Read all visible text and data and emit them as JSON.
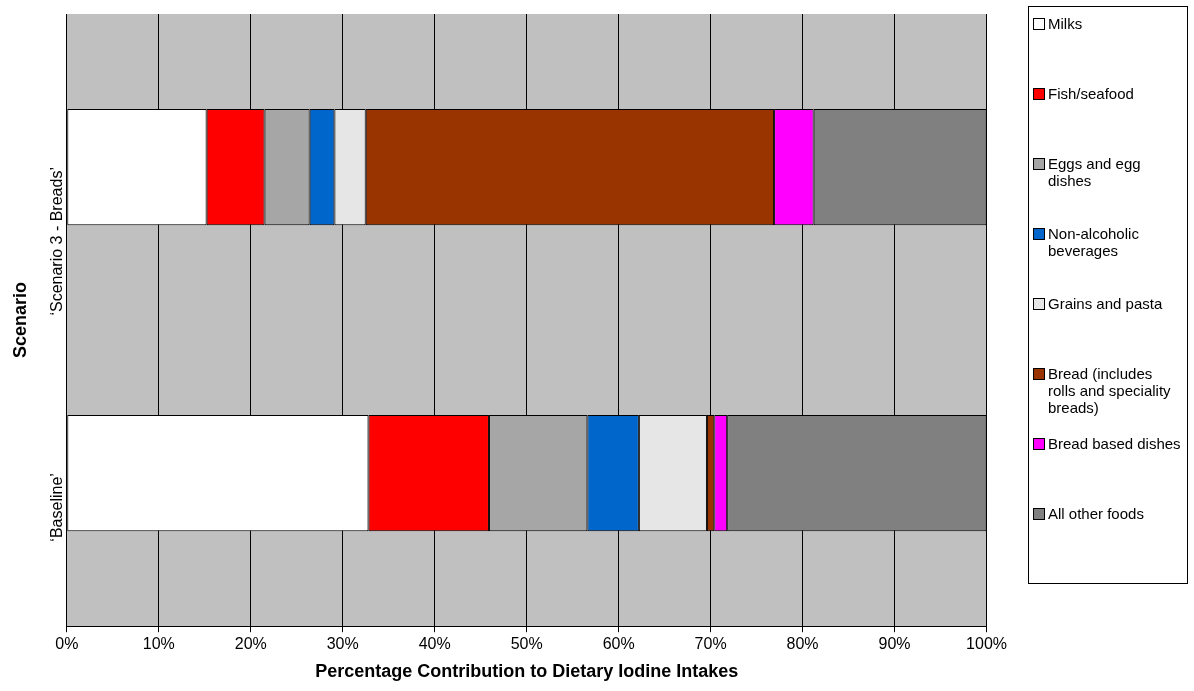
{
  "chart_data": {
    "type": "bar",
    "orientation": "horizontal",
    "stacked": true,
    "xlabel": "Percentage Contribution to Dietary Iodine Intakes",
    "ylabel": "Scenario",
    "categories": [
      "‘Scenario 3 - Breads’",
      "‘Baseline’"
    ],
    "series": [
      {
        "name": "Milks",
        "color": "#ffffff",
        "values": [
          15.2,
          32.8
        ]
      },
      {
        "name": "Fish/seafood",
        "color": "#ff0000",
        "values": [
          6.3,
          13.1
        ]
      },
      {
        "name": "Eggs and egg dishes",
        "color": "#a6a6a6",
        "values": [
          4.9,
          10.7
        ]
      },
      {
        "name": "Non-alcoholic beverages",
        "color": "#0066cc",
        "values": [
          2.7,
          5.6
        ]
      },
      {
        "name": "Grains and pasta",
        "color": "#e6e6e6",
        "values": [
          3.4,
          7.4
        ]
      },
      {
        "name": "Bread (includes rolls and speciality breads)",
        "color": "#993300",
        "values": [
          44.4,
          0.8
        ]
      },
      {
        "name": "Bread based dishes",
        "color": "#ff00ff",
        "values": [
          4.3,
          1.4
        ]
      },
      {
        "name": "All other foods",
        "color": "#808080",
        "values": [
          18.8,
          28.2
        ]
      }
    ],
    "xlim": [
      0,
      100
    ],
    "xticks": [
      {
        "value": 0,
        "label": "0%"
      },
      {
        "value": 10,
        "label": "10%"
      },
      {
        "value": 20,
        "label": "20%"
      },
      {
        "value": 30,
        "label": "30%"
      },
      {
        "value": 40,
        "label": "40%"
      },
      {
        "value": 50,
        "label": "50%"
      },
      {
        "value": 60,
        "label": "60%"
      },
      {
        "value": 70,
        "label": "70%"
      },
      {
        "value": 80,
        "label": "80%"
      },
      {
        "value": 90,
        "label": "90%"
      },
      {
        "value": 100,
        "label": "100%"
      }
    ],
    "grid": "x",
    "legend": "right"
  }
}
